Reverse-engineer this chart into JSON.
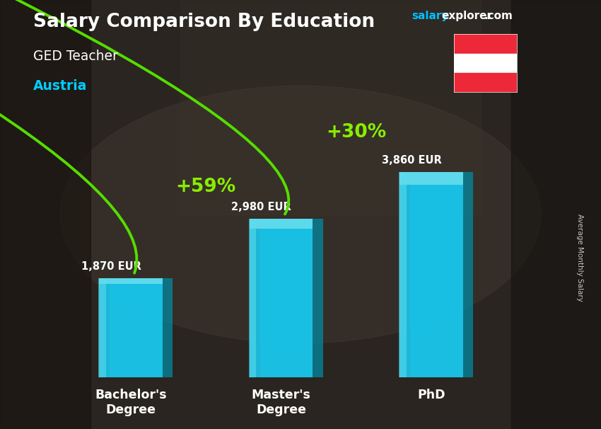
{
  "title": "Salary Comparison By Education",
  "subtitle": "GED Teacher",
  "country": "Austria",
  "watermark_salary": "salary",
  "watermark_explorer": "explorer",
  "watermark_com": ".com",
  "ylabel": "Average Monthly Salary",
  "categories": [
    "Bachelor's\nDegree",
    "Master's\nDegree",
    "PhD"
  ],
  "values": [
    1870,
    2980,
    3860
  ],
  "value_labels": [
    "1,870 EUR",
    "2,980 EUR",
    "3,860 EUR"
  ],
  "bar_color_main": "#1BC8ED",
  "bar_color_light": "#6ADEEE",
  "bar_color_face": "#3DD4F0",
  "bar_width": 0.42,
  "pct_labels": [
    "+59%",
    "+30%"
  ],
  "pct_color": "#88EE00",
  "arrow_color": "#55DD00",
  "title_color": "#FFFFFF",
  "subtitle_color": "#FFFFFF",
  "country_color": "#00CCFF",
  "watermark_color_salary": "#00BFFF",
  "watermark_color_rest": "#FFFFFF",
  "ylim": [
    0,
    5000
  ],
  "bg_color": "#3a3a3a",
  "flag_red": "#ED2939",
  "flag_white": "#FFFFFF"
}
